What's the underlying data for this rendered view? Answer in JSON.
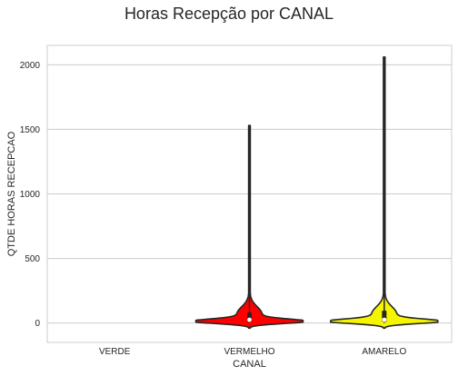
{
  "chart_data": {
    "type": "violin",
    "title": "Horas Recepção por CANAL",
    "xlabel": "CANAL",
    "ylabel": "QTDE HORAS RECEPCAO",
    "categories": [
      "VERDE",
      "VERMELHO",
      "AMARELO"
    ],
    "ylim": [
      -150,
      2150
    ],
    "yticks": [
      0,
      500,
      1000,
      1500,
      2000
    ],
    "grid": true,
    "series": [
      {
        "category": "VERDE",
        "color": "#2ca02c",
        "max": null,
        "median": null,
        "q1": null,
        "q3": null
      },
      {
        "category": "VERMELHO",
        "color": "#ff0000",
        "min": -40,
        "max": 1530,
        "median": 25,
        "q1": 10,
        "q3": 80
      },
      {
        "category": "AMARELO",
        "color": "#f5f500",
        "min": -40,
        "max": 2060,
        "median": 25,
        "q1": 10,
        "q3": 95
      }
    ]
  }
}
